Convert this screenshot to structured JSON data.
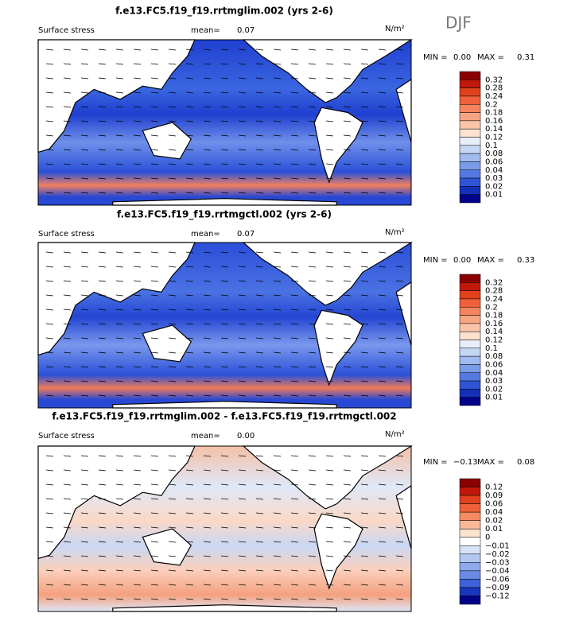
{
  "season": "DJF",
  "panels": [
    {
      "title": "f.e13.FC5.f19_f19.rrtmglim.002 (yrs 2-6)",
      "field": "Surface stress",
      "mean_label": "mean=",
      "mean": "0.07",
      "units": "N/m²",
      "min_label": "MIN =",
      "min": "0.00",
      "max_label": "MAX =",
      "max": "0.31",
      "colorbar_labels": [
        "0.32",
        "0.28",
        "0.24",
        "0.2",
        "0.18",
        "0.16",
        "0.14",
        "0.12",
        "0.1",
        "0.08",
        "0.06",
        "0.04",
        "0.03",
        "0.02",
        "0.01"
      ],
      "colorbar_colors": [
        "#8b0000",
        "#c0180c",
        "#e0401c",
        "#f0603a",
        "#f5845e",
        "#f8a584",
        "#fac4a8",
        "#fde2d0",
        "#e8eefa",
        "#c5d6f5",
        "#a0bbf0",
        "#7b9ce8",
        "#5579e0",
        "#2f55d6",
        "#1530b8",
        "#00008b"
      ]
    },
    {
      "title": "f.e13.FC5.f19_f19.rrtmgctl.002 (yrs 2-6)",
      "field": "Surface stress",
      "mean_label": "mean=",
      "mean": "0.07",
      "units": "N/m²",
      "min_label": "MIN =",
      "min": "0.00",
      "max_label": "MAX =",
      "max": "0.33",
      "colorbar_labels": [
        "0.32",
        "0.28",
        "0.24",
        "0.2",
        "0.18",
        "0.16",
        "0.14",
        "0.12",
        "0.1",
        "0.08",
        "0.06",
        "0.04",
        "0.03",
        "0.02",
        "0.01"
      ],
      "colorbar_colors": [
        "#8b0000",
        "#c0180c",
        "#e0401c",
        "#f0603a",
        "#f5845e",
        "#f8a584",
        "#fac4a8",
        "#fde2d0",
        "#e8eefa",
        "#c5d6f5",
        "#a0bbf0",
        "#7b9ce8",
        "#5579e0",
        "#2f55d6",
        "#1530b8",
        "#00008b"
      ]
    },
    {
      "title": "f.e13.FC5.f19_f19.rrtmglim.002 - f.e13.FC5.f19_f19.rrtmgctl.002",
      "field": "Surface stress",
      "mean_label": "mean=",
      "mean": "0.00",
      "units": "N/m²",
      "min_label": "MIN =",
      "min": "−0.13",
      "max_label": "MAX =",
      "max": "0.08",
      "colorbar_labels": [
        "0.12",
        "0.09",
        "0.06",
        "0.04",
        "0.02",
        "0.01",
        "0",
        "−0.01",
        "−0.02",
        "−0.03",
        "−0.04",
        "−0.06",
        "−0.09",
        "−0.12"
      ],
      "colorbar_colors": [
        "#8b0000",
        "#c0180c",
        "#e0401c",
        "#f0603a",
        "#f58a64",
        "#f9b898",
        "#fde2d0",
        "#ffffff",
        "#d6e2f8",
        "#b2c8f2",
        "#8eaaec",
        "#6a8ae4",
        "#3f62d8",
        "#1a36bc",
        "#00008b"
      ]
    }
  ]
}
